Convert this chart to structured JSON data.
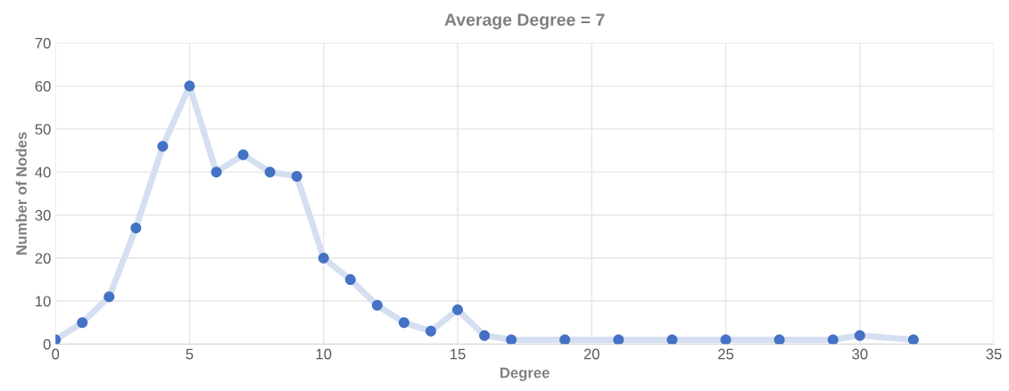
{
  "chart_data": {
    "type": "line",
    "title": "Average Degree = 7",
    "xlabel": "Degree",
    "ylabel": "Number of Nodes",
    "x": [
      0,
      1,
      2,
      3,
      4,
      5,
      6,
      7,
      8,
      9,
      10,
      11,
      12,
      13,
      14,
      15,
      16,
      17,
      19,
      21,
      23,
      25,
      27,
      29,
      30,
      32
    ],
    "series": [
      {
        "color": "#d5dff1",
        "marker": "none",
        "values": [
          1,
          5,
          11,
          27,
          46,
          60,
          40,
          44,
          40,
          39,
          20,
          15,
          9,
          5,
          3,
          8,
          2,
          1,
          1,
          1,
          1,
          1,
          1,
          1,
          2,
          1
        ]
      },
      {
        "type": "scatter",
        "color": "#4472c4",
        "marker": "circle",
        "values": [
          1,
          5,
          11,
          27,
          46,
          60,
          40,
          44,
          40,
          39,
          20,
          15,
          9,
          5,
          3,
          8,
          2,
          1,
          1,
          1,
          1,
          1,
          1,
          1,
          2,
          1
        ]
      }
    ],
    "xlim": [
      0,
      35
    ],
    "xticks": [
      0,
      5,
      10,
      15,
      20,
      25,
      30,
      35
    ],
    "ylim": [
      0,
      70
    ],
    "yticks": [
      0,
      10,
      20,
      30,
      40,
      50,
      60,
      70
    ],
    "grid": true
  }
}
